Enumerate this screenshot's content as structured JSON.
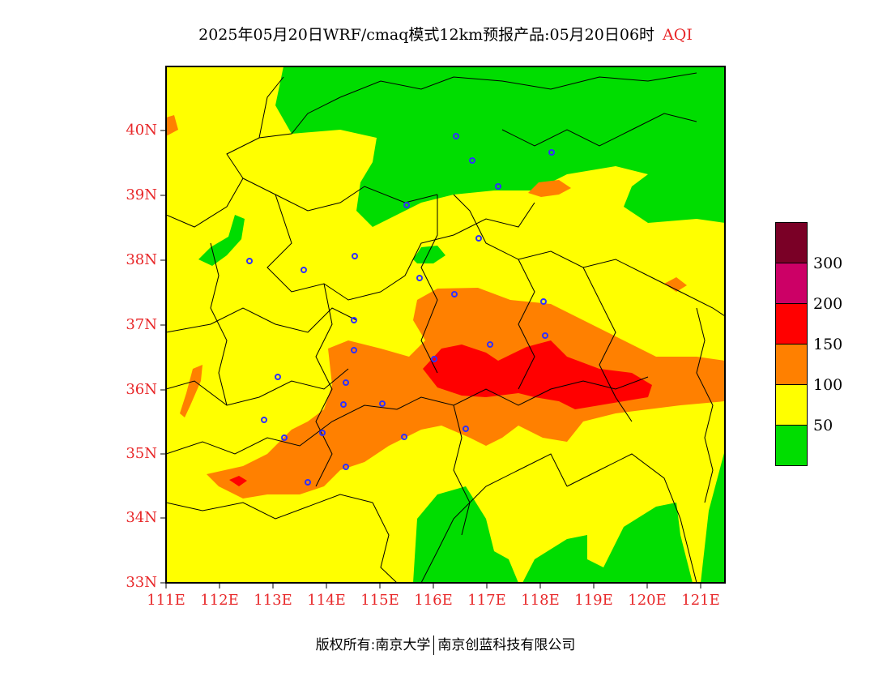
{
  "title": {
    "main": "2025年05月20日WRF/cmaq模式12km预报产品:05月20日06时",
    "tag": "AQI"
  },
  "map": {
    "lon_range": [
      111,
      121.5
    ],
    "lat_range": [
      33,
      41
    ],
    "lon_ticks": [
      "111E",
      "112E",
      "113E",
      "114E",
      "115E",
      "116E",
      "117E",
      "118E",
      "119E",
      "120E",
      "121E"
    ],
    "lat_ticks": [
      "33N",
      "34N",
      "35N",
      "36N",
      "37N",
      "38N",
      "39N",
      "40N"
    ],
    "station_marker_color": "#3030ff",
    "boundary_color": "#000000"
  },
  "legend": {
    "colors": [
      "#7a0026",
      "#cc0066",
      "#ff0000",
      "#ff8000",
      "#ffff00",
      "#00dd00"
    ],
    "ticks": [
      "300",
      "200",
      "150",
      "100",
      "50"
    ]
  },
  "copyright": {
    "left": "版权所有:南京大学",
    "right": "南京创蓝科技有限公司"
  }
}
